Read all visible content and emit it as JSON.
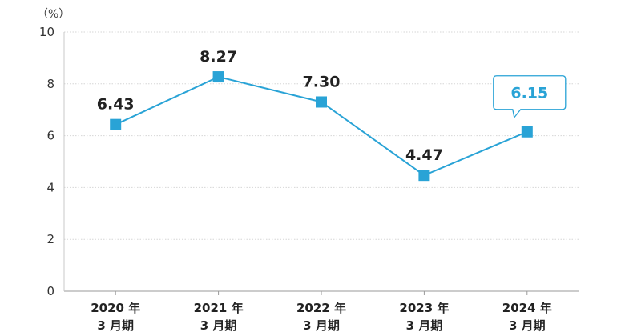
{
  "chart_data": {
    "type": "line",
    "unit": "（%）",
    "ylim": [
      0,
      10
    ],
    "yticks": [
      "0",
      "2",
      "4",
      "6",
      "8",
      "10"
    ],
    "grid": true,
    "categories": [
      [
        "2020 年",
        "3 月期"
      ],
      [
        "2021 年",
        "3 月期"
      ],
      [
        "2022 年",
        "3 月期"
      ],
      [
        "2023 年",
        "3 月期"
      ],
      [
        "2024 年",
        "3 月期"
      ]
    ],
    "values": [
      6.43,
      8.27,
      7.3,
      4.47,
      6.15
    ],
    "value_labels": [
      "6.43",
      "8.27",
      "7.30",
      "4.47",
      "6.15"
    ],
    "highlight_index": 4,
    "colors": {
      "line": "#29a3d6",
      "marker": "#29a3d6",
      "highlight_text": "#29a3d6"
    }
  }
}
